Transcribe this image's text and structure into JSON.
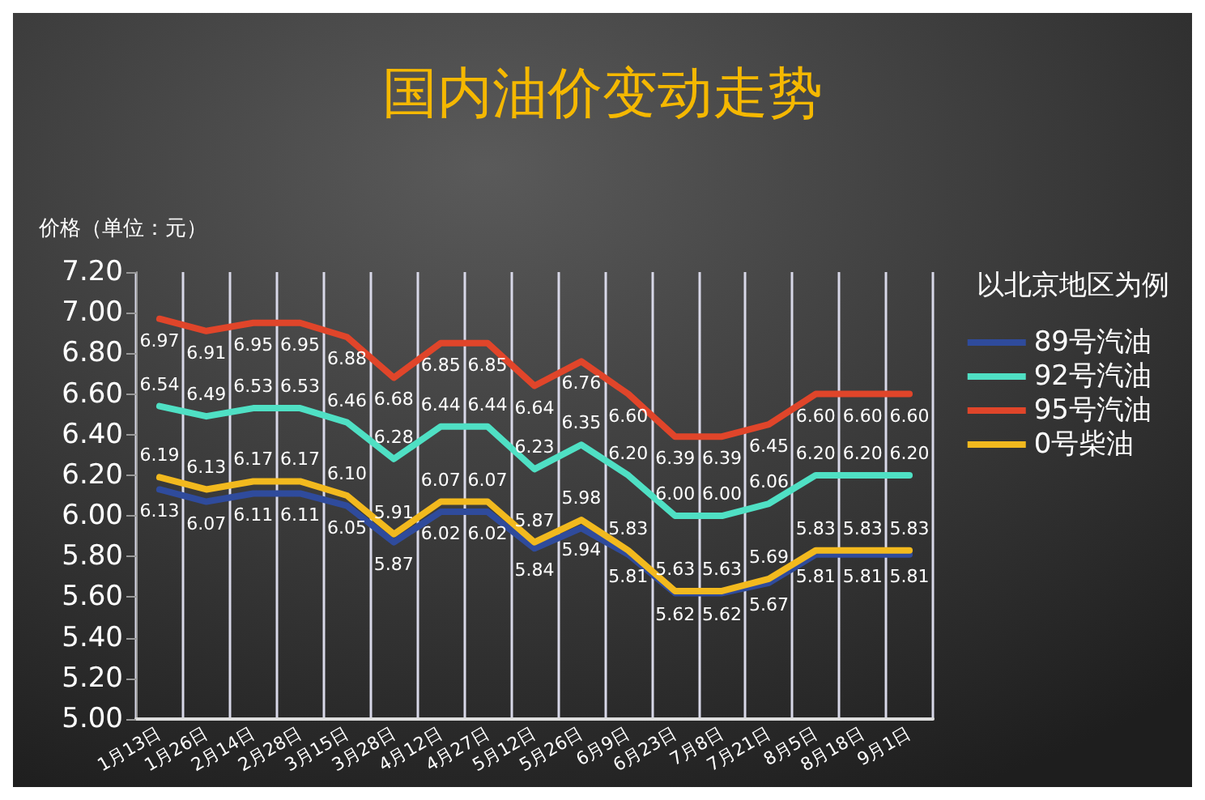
{
  "chart_data": {
    "type": "line",
    "title": "国内油价变动走势",
    "ylabel": "价格（单位：元）",
    "legend_title": "以北京地区为例",
    "categories": [
      "1月13日",
      "1月26日",
      "2月14日",
      "2月28日",
      "3月15日",
      "3月28日",
      "4月12日",
      "4月27日",
      "5月12日",
      "5月26日",
      "6月9日",
      "6月23日",
      "7月8日",
      "7月21日",
      "8月5日",
      "8月18日",
      "9月1日"
    ],
    "series": [
      {
        "name": "89号汽油",
        "color": "#2f4b9c",
        "values": [
          6.13,
          6.07,
          6.11,
          6.11,
          6.05,
          5.87,
          6.02,
          6.02,
          5.84,
          5.94,
          5.81,
          5.62,
          5.62,
          5.67,
          5.81,
          5.81,
          5.81
        ],
        "value_labels": [
          "6.13",
          "6.07",
          "6.11",
          "6.11",
          "6.05",
          "5.87",
          "6.02",
          "6.02",
          "5.84",
          "5.94",
          "5.81",
          "5.62",
          "5.62",
          "5.67",
          "5.81",
          "5.81",
          "5.81"
        ]
      },
      {
        "name": "92号汽油",
        "color": "#4fe0c4",
        "values": [
          6.54,
          6.49,
          6.53,
          6.53,
          6.46,
          6.28,
          6.44,
          6.44,
          6.23,
          6.35,
          6.2,
          6.0,
          6.0,
          6.06,
          6.2,
          6.2,
          6.2
        ],
        "value_labels": [
          "6.54",
          "6.49",
          "6.53",
          "6.53",
          "6.46",
          "6.28",
          "6.44",
          "6.44",
          "6.23",
          "6.35",
          "6.20",
          "6.00",
          "6.00",
          "6.06",
          "6.20",
          "6.20",
          "6.20"
        ]
      },
      {
        "name": "95号汽油",
        "color": "#e0452a",
        "values": [
          6.97,
          6.91,
          6.95,
          6.95,
          6.88,
          6.68,
          6.85,
          6.85,
          6.64,
          6.76,
          6.6,
          6.39,
          6.39,
          6.45,
          6.6,
          6.6,
          6.6
        ],
        "value_labels": [
          "6.97",
          "6.91",
          "6.95",
          "6.95",
          "6.88",
          "6.68",
          "6.85",
          "6.85",
          "6.64",
          "6.76",
          "6.60",
          "6.39",
          "6.39",
          "6.45",
          "6.60",
          "6.60",
          "6.60"
        ]
      },
      {
        "name": "0号柴油",
        "color": "#f2b91e",
        "values": [
          6.19,
          6.13,
          6.17,
          6.17,
          6.1,
          5.91,
          6.07,
          6.07,
          5.87,
          5.98,
          5.83,
          5.63,
          5.63,
          5.69,
          5.83,
          5.83,
          5.83
        ],
        "value_labels": [
          "6.19",
          "6.13",
          "6.17",
          "6.17",
          "6.10",
          "5.91",
          "6.07",
          "6.07",
          "5.87",
          "5.98",
          "5.83",
          "5.63",
          "5.63",
          "5.69",
          "5.83",
          "5.83",
          "5.83"
        ]
      }
    ],
    "ylim": [
      5.0,
      7.2
    ],
    "yticks": [
      {
        "value": 5.0,
        "label": "5.00"
      },
      {
        "value": 5.2,
        "label": "5.20"
      },
      {
        "value": 5.4,
        "label": "5.40"
      },
      {
        "value": 5.6,
        "label": "5.60"
      },
      {
        "value": 5.8,
        "label": "5.80"
      },
      {
        "value": 6.0,
        "label": "6.00"
      },
      {
        "value": 6.2,
        "label": "6.20"
      },
      {
        "value": 6.4,
        "label": "6.40"
      },
      {
        "value": 6.6,
        "label": "6.60"
      },
      {
        "value": 6.8,
        "label": "6.80"
      },
      {
        "value": 7.0,
        "label": "7.00"
      },
      {
        "value": 7.2,
        "label": "7.20"
      }
    ],
    "grid": "x",
    "legend": "right",
    "marker": "none",
    "line_style": "solid"
  }
}
